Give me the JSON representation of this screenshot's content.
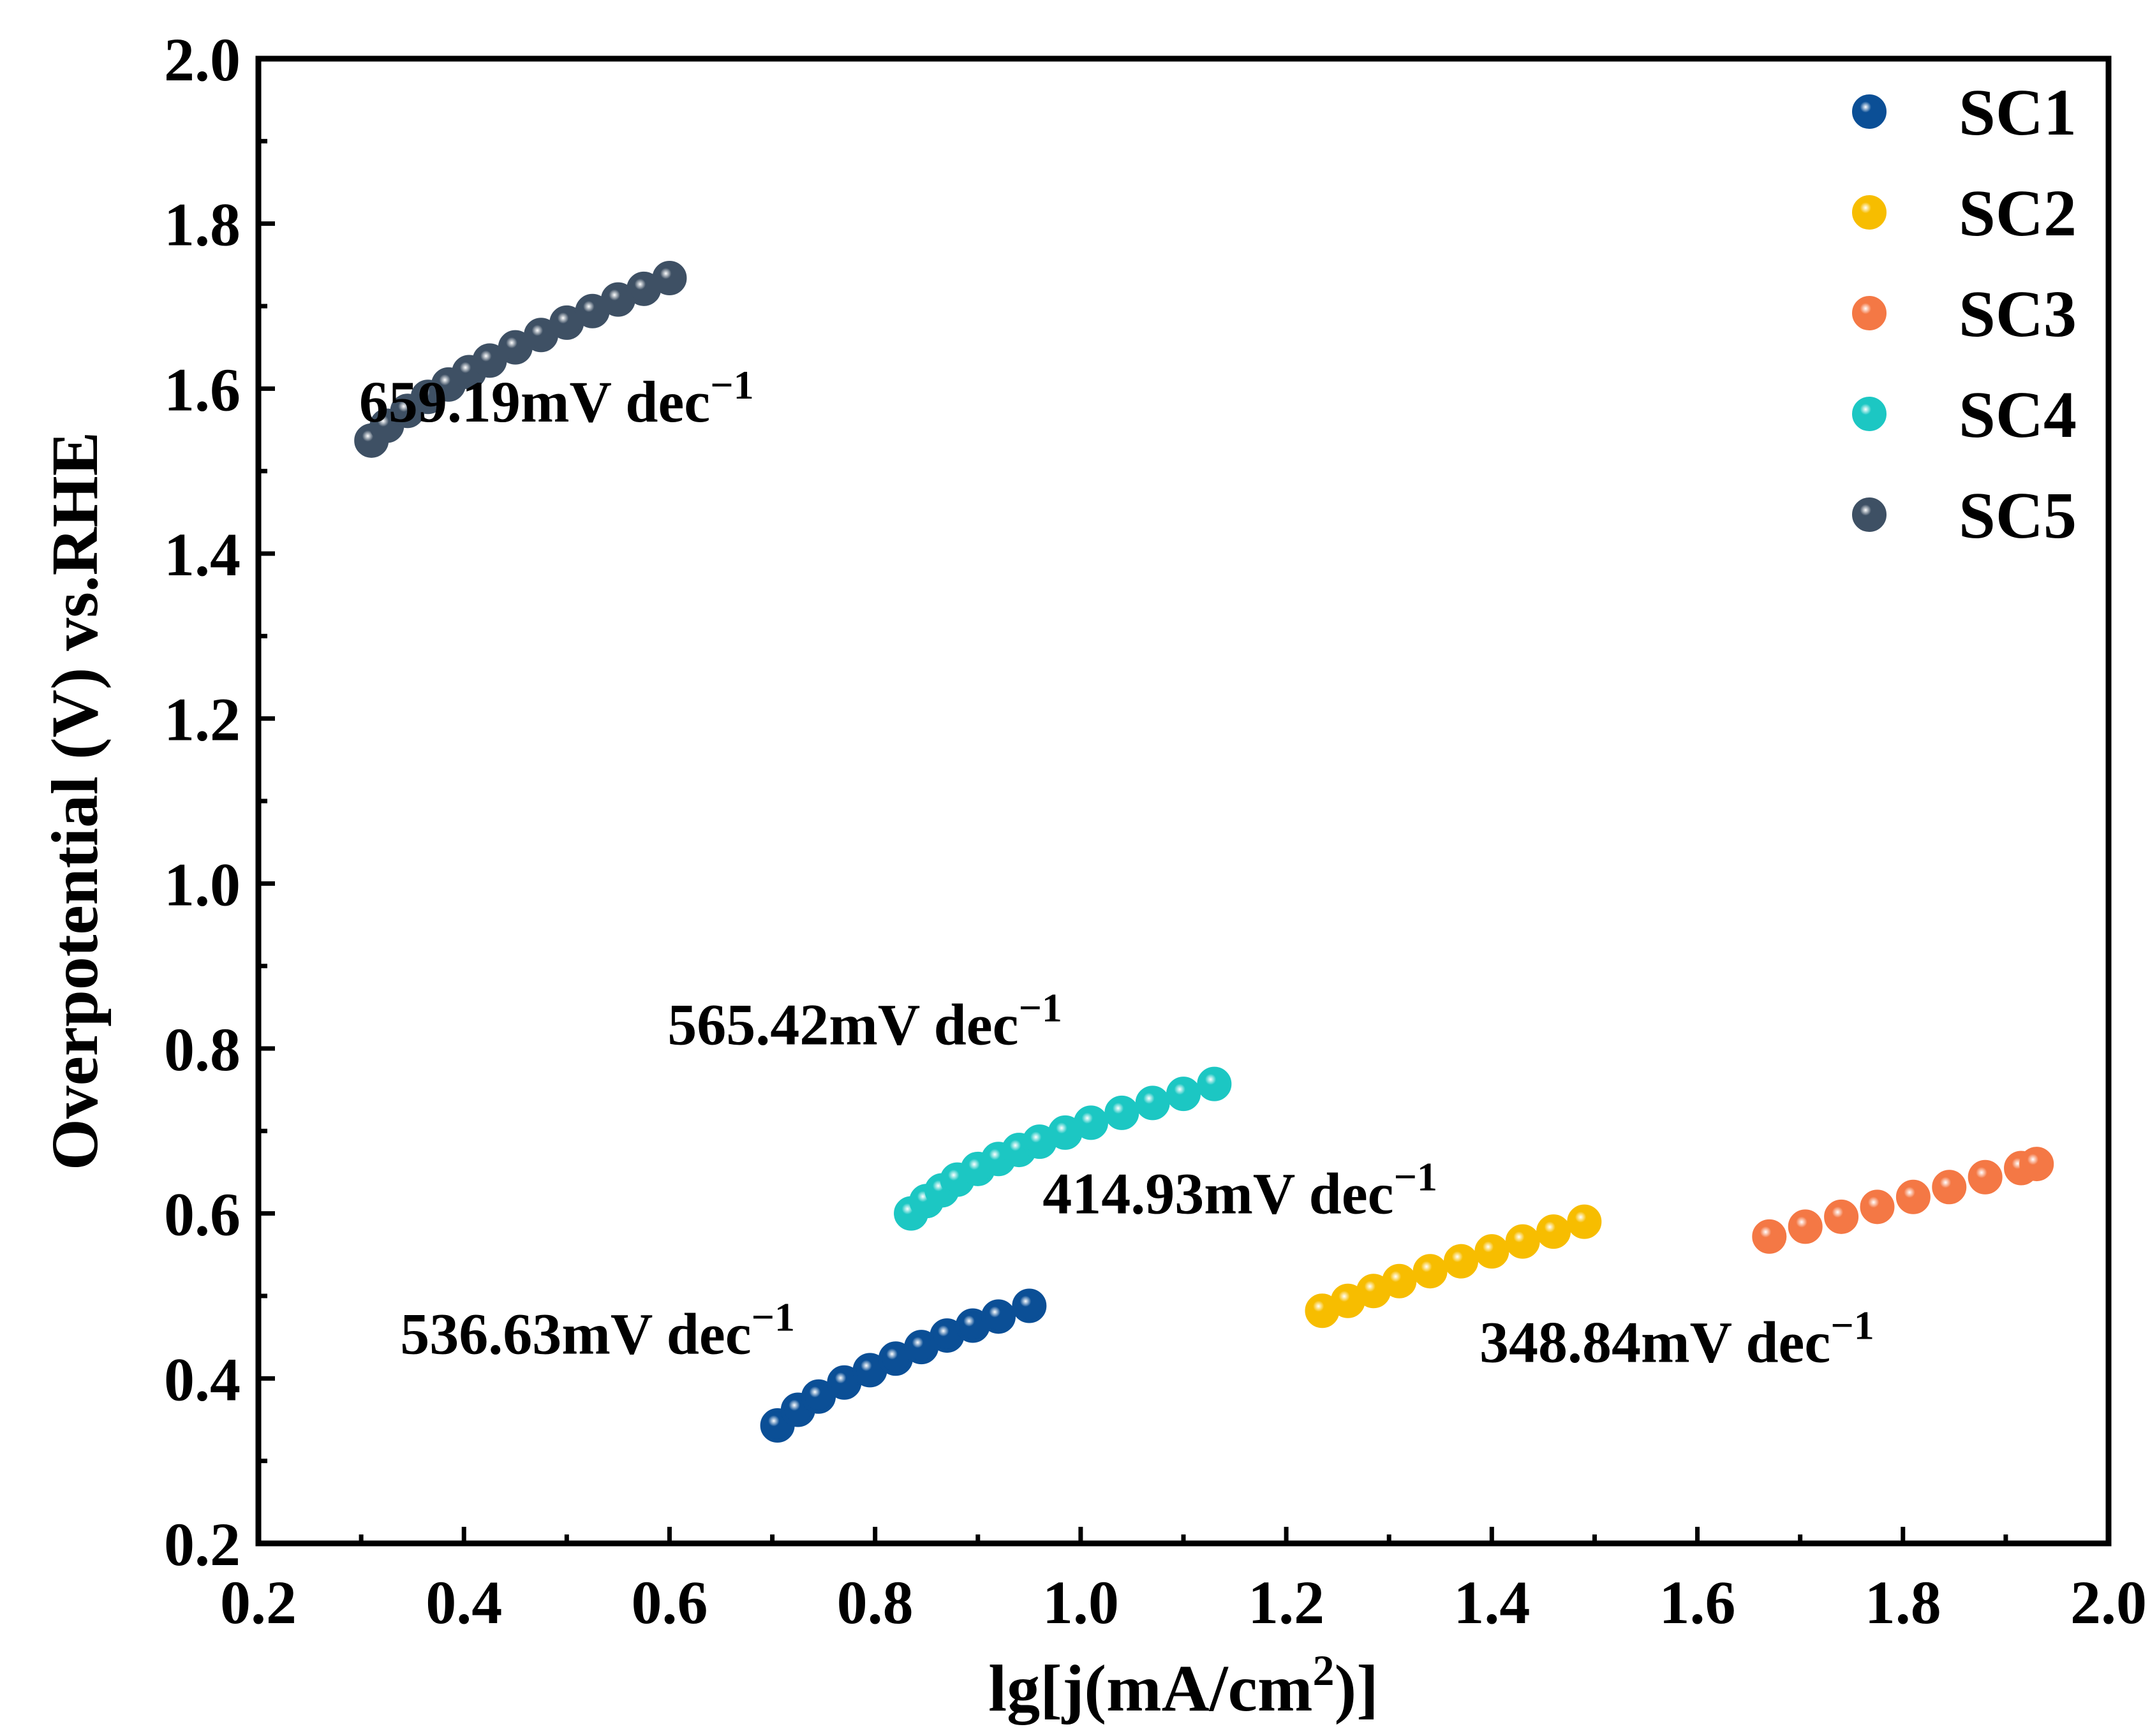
{
  "chart_data": {
    "type": "scatter",
    "title": "",
    "xlabel": "lg[j(mA/cm2)]",
    "xlabel_parts": {
      "base": "lg[j(mA/cm",
      "sup": "2",
      "end": ")]"
    },
    "ylabel": "Overpotential (V) vs.RHE",
    "xlim": [
      0.2,
      2.0
    ],
    "ylim": [
      0.2,
      2.0
    ],
    "xticks": [
      "0.2",
      "0.4",
      "0.6",
      "0.8",
      "1.0",
      "1.2",
      "1.4",
      "1.6",
      "1.8",
      "2.0"
    ],
    "yticks": [
      "0.2",
      "0.4",
      "0.6",
      "0.8",
      "1.0",
      "1.2",
      "1.4",
      "1.6",
      "1.8",
      "2.0"
    ],
    "legend_position": "top-right",
    "series": [
      {
        "name": "SC1",
        "color": "#0b4f96",
        "x": [
          0.705,
          0.725,
          0.745,
          0.77,
          0.795,
          0.82,
          0.845,
          0.87,
          0.895,
          0.92,
          0.95
        ],
        "y": [
          0.343,
          0.362,
          0.378,
          0.395,
          0.41,
          0.424,
          0.438,
          0.452,
          0.464,
          0.475,
          0.488
        ]
      },
      {
        "name": "SC2",
        "color": "#f7bd00",
        "x": [
          1.235,
          1.26,
          1.285,
          1.31,
          1.34,
          1.37,
          1.4,
          1.43,
          1.46,
          1.49
        ],
        "y": [
          0.482,
          0.494,
          0.506,
          0.518,
          0.53,
          0.542,
          0.554,
          0.566,
          0.578,
          0.59
        ]
      },
      {
        "name": "SC3",
        "color": "#f47845",
        "x": [
          1.67,
          1.705,
          1.74,
          1.775,
          1.81,
          1.845,
          1.88,
          1.915,
          1.93
        ],
        "y": [
          0.572,
          0.584,
          0.596,
          0.608,
          0.62,
          0.632,
          0.644,
          0.655,
          0.66
        ]
      },
      {
        "name": "SC4",
        "color": "#1cc7c3",
        "x": [
          0.835,
          0.85,
          0.865,
          0.88,
          0.9,
          0.92,
          0.94,
          0.96,
          0.985,
          1.01,
          1.04,
          1.07,
          1.1,
          1.13
        ],
        "y": [
          0.6,
          0.615,
          0.628,
          0.641,
          0.654,
          0.666,
          0.677,
          0.687,
          0.698,
          0.71,
          0.722,
          0.734,
          0.745,
          0.757
        ]
      },
      {
        "name": "SC5",
        "color": "#3e5064",
        "x": [
          0.31,
          0.325,
          0.345,
          0.365,
          0.385,
          0.405,
          0.425,
          0.45,
          0.475,
          0.5,
          0.525,
          0.55,
          0.575,
          0.6
        ],
        "y": [
          1.537,
          1.555,
          1.573,
          1.59,
          1.605,
          1.62,
          1.634,
          1.65,
          1.665,
          1.68,
          1.694,
          1.708,
          1.721,
          1.734
        ]
      }
    ],
    "annotations": [
      {
        "base": "659.19mV dec",
        "sup": "−1",
        "x": 0.49,
        "y": 1.56,
        "series": "SC5"
      },
      {
        "base": "565.42mV dec",
        "sup": "−1",
        "x": 0.79,
        "y": 0.805,
        "series": "SC4"
      },
      {
        "base": "414.93mV dec",
        "sup": "−1",
        "x": 1.155,
        "y": 0.6,
        "series": "SC2"
      },
      {
        "base": "536.63mV dec",
        "sup": "−1",
        "x": 0.53,
        "y": 0.43,
        "series": "SC1"
      },
      {
        "base": "348.84mV dec",
        "sup": "−1",
        "x": 1.58,
        "y": 0.42,
        "series": "SC3"
      }
    ]
  }
}
